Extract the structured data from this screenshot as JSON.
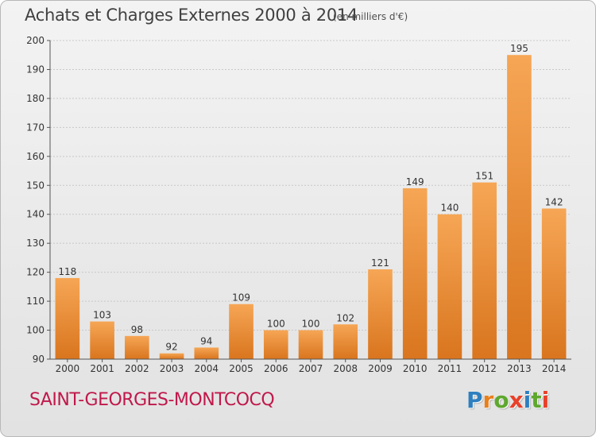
{
  "header": {
    "title": "Achats et Charges Externes 2000 à 2014",
    "unit": "(en milliers d'€)"
  },
  "footer": {
    "commune": "SAINT-GEORGES-MONTCOCQ",
    "logo": {
      "letters": [
        "P",
        "r",
        "o",
        "x",
        "i",
        "t",
        "i"
      ],
      "colors": [
        "#2e7fc0",
        "#e87f1a",
        "#5ea82e",
        "#e8402a",
        "#2e7fc0",
        "#5ea82e",
        "#e8402a"
      ]
    }
  },
  "colors": {
    "bar_light": "#f6a655",
    "bar_dark": "#d9751e",
    "grid": "#c8c8c8",
    "axis": "#555555",
    "text": "#333333"
  },
  "chart_data": {
    "type": "bar",
    "title": "Achats et Charges Externes 2000 à 2014",
    "subtitle": "(en milliers d'€)",
    "categories": [
      "2000",
      "2001",
      "2002",
      "2003",
      "2004",
      "2005",
      "2006",
      "2007",
      "2008",
      "2009",
      "2010",
      "2011",
      "2012",
      "2013",
      "2014"
    ],
    "values": [
      118,
      103,
      98,
      92,
      94,
      109,
      100,
      100,
      102,
      121,
      149,
      140,
      151,
      195,
      142
    ],
    "ylim": [
      90,
      200
    ],
    "yticks": [
      90,
      100,
      110,
      120,
      130,
      140,
      150,
      160,
      170,
      180,
      190,
      200
    ],
    "grid": true,
    "data_labels": true,
    "legend": "none"
  }
}
